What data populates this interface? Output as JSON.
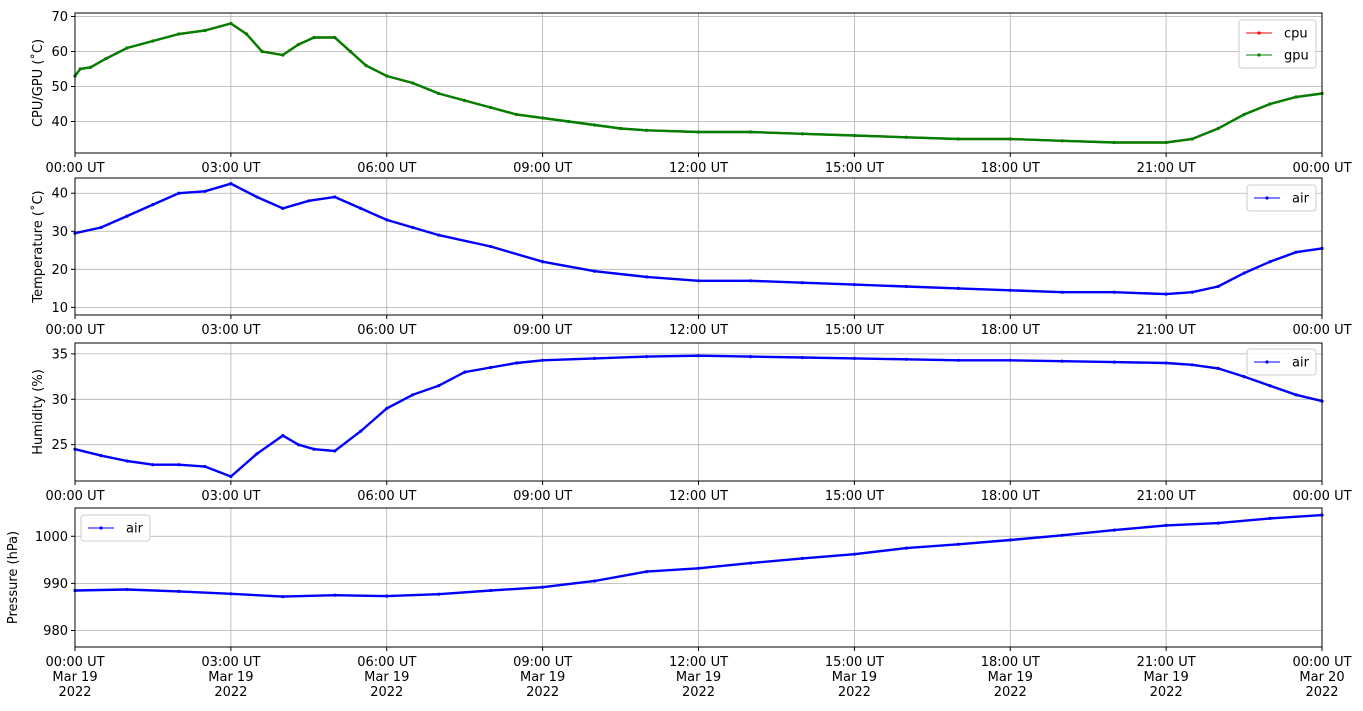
{
  "x_ticks": [
    {
      "line1": "00:00 UT",
      "line2": "Mar 19",
      "line3": "2022"
    },
    {
      "line1": "03:00 UT",
      "line2": "Mar 19",
      "line3": "2022"
    },
    {
      "line1": "06:00 UT",
      "line2": "Mar 19",
      "line3": "2022"
    },
    {
      "line1": "09:00 UT",
      "line2": "Mar 19",
      "line3": "2022"
    },
    {
      "line1": "12:00 UT",
      "line2": "Mar 19",
      "line3": "2022"
    },
    {
      "line1": "15:00 UT",
      "line2": "Mar 19",
      "line3": "2022"
    },
    {
      "line1": "18:00 UT",
      "line2": "Mar 19",
      "line3": "2022"
    },
    {
      "line1": "21:00 UT",
      "line2": "Mar 19",
      "line3": "2022"
    },
    {
      "line1": "00:00 UT",
      "line2": "Mar 20",
      "line3": "2022"
    }
  ],
  "chart_data": [
    {
      "type": "line",
      "ylabel": "CPU/GPU (˚C)",
      "xlim": [
        "2022-03-19 00:00",
        "2022-03-20 00:00"
      ],
      "ylim": [
        31,
        71
      ],
      "yticks": [
        40,
        50,
        60,
        70
      ],
      "grid": true,
      "legend_position": "top-right",
      "x_hours": [
        0,
        0.1,
        0.3,
        0.6,
        1.0,
        1.5,
        2.0,
        2.5,
        3.0,
        3.3,
        3.6,
        4.0,
        4.3,
        4.6,
        5.0,
        5.3,
        5.6,
        6.0,
        6.5,
        7.0,
        7.5,
        8.0,
        8.5,
        9.0,
        9.5,
        10.0,
        10.5,
        11.0,
        12.0,
        13.0,
        14.0,
        15.0,
        16.0,
        17.0,
        18.0,
        19.0,
        20.0,
        21.0,
        21.5,
        22.0,
        22.5,
        23.0,
        23.5,
        24.0
      ],
      "series": [
        {
          "name": "cpu",
          "color": "#ff0000",
          "values": [
            53,
            55,
            55.5,
            58,
            61,
            63,
            65,
            66,
            68,
            65,
            60,
            59,
            62,
            64,
            64,
            60,
            56,
            53,
            51,
            48,
            46,
            44,
            42,
            41,
            40,
            39,
            38,
            37.5,
            37,
            37,
            36.5,
            36,
            35.5,
            35,
            35,
            34.5,
            34,
            34,
            35,
            38,
            42,
            45,
            47,
            48
          ]
        },
        {
          "name": "gpu",
          "color": "#008000",
          "values": [
            53,
            55,
            55.5,
            58,
            61,
            63,
            65,
            66,
            68,
            65,
            60,
            59,
            62,
            64,
            64,
            60,
            56,
            53,
            51,
            48,
            46,
            44,
            42,
            41,
            40,
            39,
            38,
            37.5,
            37,
            37,
            36.5,
            36,
            35.5,
            35,
            35,
            34.5,
            34,
            34,
            35,
            38,
            42,
            45,
            47,
            48
          ]
        }
      ]
    },
    {
      "type": "line",
      "ylabel": "Temperature (˚C)",
      "xlim": [
        "2022-03-19 00:00",
        "2022-03-20 00:00"
      ],
      "ylim": [
        8,
        44
      ],
      "yticks": [
        10,
        20,
        30,
        40
      ],
      "grid": true,
      "legend_position": "top-right",
      "x_hours": [
        0,
        0.5,
        1.0,
        1.5,
        2.0,
        2.5,
        3.0,
        3.5,
        4.0,
        4.5,
        5.0,
        5.5,
        6.0,
        6.5,
        7.0,
        8.0,
        9.0,
        10.0,
        11.0,
        12.0,
        13.0,
        14.0,
        15.0,
        16.0,
        17.0,
        18.0,
        19.0,
        20.0,
        21.0,
        21.5,
        22.0,
        22.5,
        23.0,
        23.5,
        24.0
      ],
      "series": [
        {
          "name": "air",
          "color": "#0000ff",
          "values": [
            29.5,
            31,
            34,
            37,
            40,
            40.5,
            42.5,
            39,
            36,
            38,
            39,
            36,
            33,
            31,
            29,
            26,
            22,
            19.5,
            18,
            17,
            17,
            16.5,
            16,
            15.5,
            15,
            14.5,
            14,
            14,
            13.5,
            14,
            15.5,
            19,
            22,
            24.5,
            25.5
          ]
        }
      ]
    },
    {
      "type": "line",
      "ylabel": "Humidity (%)",
      "xlim": [
        "2022-03-19 00:00",
        "2022-03-20 00:00"
      ],
      "ylim": [
        21,
        36.2
      ],
      "yticks": [
        25,
        30,
        35
      ],
      "grid": true,
      "legend_position": "top-right",
      "x_hours": [
        0,
        0.5,
        1.0,
        1.5,
        2.0,
        2.5,
        3.0,
        3.5,
        4.0,
        4.3,
        4.6,
        5.0,
        5.5,
        6.0,
        6.5,
        7.0,
        7.5,
        8.0,
        8.5,
        9.0,
        10.0,
        11.0,
        12.0,
        13.0,
        14.0,
        15.0,
        16.0,
        17.0,
        18.0,
        19.0,
        20.0,
        21.0,
        21.5,
        22.0,
        22.5,
        23.0,
        23.5,
        24.0
      ],
      "series": [
        {
          "name": "air",
          "color": "#0000ff",
          "values": [
            24.5,
            23.8,
            23.2,
            22.8,
            22.8,
            22.6,
            21.5,
            24,
            26,
            25,
            24.5,
            24.3,
            26.5,
            29,
            30.5,
            31.5,
            33,
            33.5,
            34,
            34.3,
            34.5,
            34.7,
            34.8,
            34.7,
            34.6,
            34.5,
            34.4,
            34.3,
            34.3,
            34.2,
            34.1,
            34,
            33.8,
            33.4,
            32.5,
            31.5,
            30.5,
            29.8
          ]
        }
      ]
    },
    {
      "type": "line",
      "ylabel": "Pressure (hPa)",
      "xlim": [
        "2022-03-19 00:00",
        "2022-03-20 00:00"
      ],
      "ylim": [
        976.5,
        1006
      ],
      "yticks": [
        980,
        990,
        1000
      ],
      "grid": true,
      "legend_position": "top-left",
      "x_hours": [
        0,
        1.0,
        2.0,
        3.0,
        4.0,
        5.0,
        6.0,
        7.0,
        8.0,
        9.0,
        10.0,
        11.0,
        12.0,
        13.0,
        14.0,
        15.0,
        16.0,
        17.0,
        18.0,
        19.0,
        20.0,
        21.0,
        22.0,
        23.0,
        24.0
      ],
      "series": [
        {
          "name": "air",
          "color": "#0000ff",
          "values": [
            988.5,
            988.7,
            988.3,
            987.8,
            987.2,
            987.5,
            987.3,
            987.7,
            988.5,
            989.2,
            990.5,
            992.5,
            993.2,
            994.3,
            995.3,
            996.2,
            997.5,
            998.3,
            999.2,
            1000.2,
            1001.3,
            1002.3,
            1002.8,
            1003.8,
            1004.5
          ]
        }
      ]
    }
  ]
}
